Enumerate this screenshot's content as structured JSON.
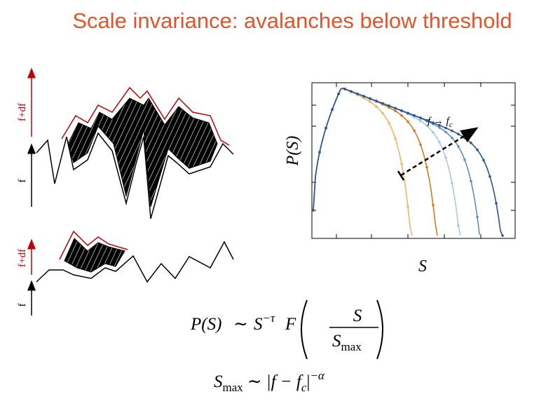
{
  "title": "Scale invariance: avalanches below threshold",
  "diagram": {
    "top_upper_label": "f+df",
    "top_lower_label": "f",
    "bottom_upper_label": "f+df",
    "bottom_lower_label": "f"
  },
  "plot": {
    "y_label": "P(S)",
    "x_label": "S",
    "annotation_main": "f → f",
    "annotation_sub": "c"
  },
  "equation_1": {
    "lhs": "P(S)",
    "relation": "∼",
    "base": "S",
    "exponent": "−τ",
    "function": "F",
    "numerator": "S",
    "denominator": "S",
    "denominator_sub": "max"
  },
  "equation_2": {
    "lhs": "S",
    "lhs_sub": "max",
    "relation": "∼",
    "body": "|f − f",
    "body_sub": "c",
    "close": "|",
    "exponent": "−α"
  }
}
